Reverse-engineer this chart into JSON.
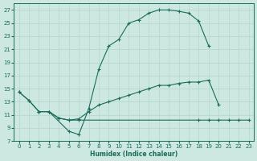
{
  "bg_color": "#cce8e0",
  "grid_color": "#b8d8d0",
  "line_color": "#1a6b5a",
  "xlabel": "Humidex (Indice chaleur)",
  "xlim": [
    -0.5,
    23.5
  ],
  "ylim": [
    7,
    28
  ],
  "xticks": [
    0,
    1,
    2,
    3,
    4,
    5,
    6,
    7,
    8,
    9,
    10,
    11,
    12,
    13,
    14,
    15,
    16,
    17,
    18,
    19,
    20,
    21,
    22,
    23
  ],
  "yticks": [
    7,
    9,
    11,
    13,
    15,
    17,
    19,
    21,
    23,
    25,
    27
  ],
  "curve_top_x": [
    0,
    1,
    2,
    3,
    5,
    6,
    7,
    8,
    9,
    10,
    11,
    12,
    13,
    14,
    15,
    16,
    17,
    18,
    19
  ],
  "curve_top_y": [
    14.5,
    13.2,
    11.5,
    11.5,
    8.5,
    8.0,
    12.0,
    18.0,
    21.5,
    22.5,
    25.0,
    25.5,
    26.5,
    27.0,
    27.0,
    26.8,
    26.5,
    25.3,
    21.5
  ],
  "curve_mid_x": [
    0,
    1,
    2,
    3,
    4,
    5,
    6,
    7,
    8,
    9,
    10,
    11,
    12,
    13,
    14,
    15,
    16,
    17,
    18,
    19,
    20
  ],
  "curve_mid_y": [
    14.5,
    13.2,
    11.5,
    11.5,
    10.5,
    10.2,
    10.4,
    11.5,
    12.5,
    13.0,
    13.5,
    14.0,
    14.5,
    15.0,
    15.5,
    15.5,
    15.8,
    16.0,
    16.0,
    16.3,
    12.5
  ],
  "curve_bot_x": [
    2,
    3,
    4,
    5,
    6,
    18,
    19,
    20,
    21,
    22,
    23
  ],
  "curve_bot_y": [
    11.5,
    11.5,
    10.5,
    10.2,
    10.2,
    10.2,
    10.2,
    10.2,
    10.2,
    10.2,
    10.2
  ]
}
